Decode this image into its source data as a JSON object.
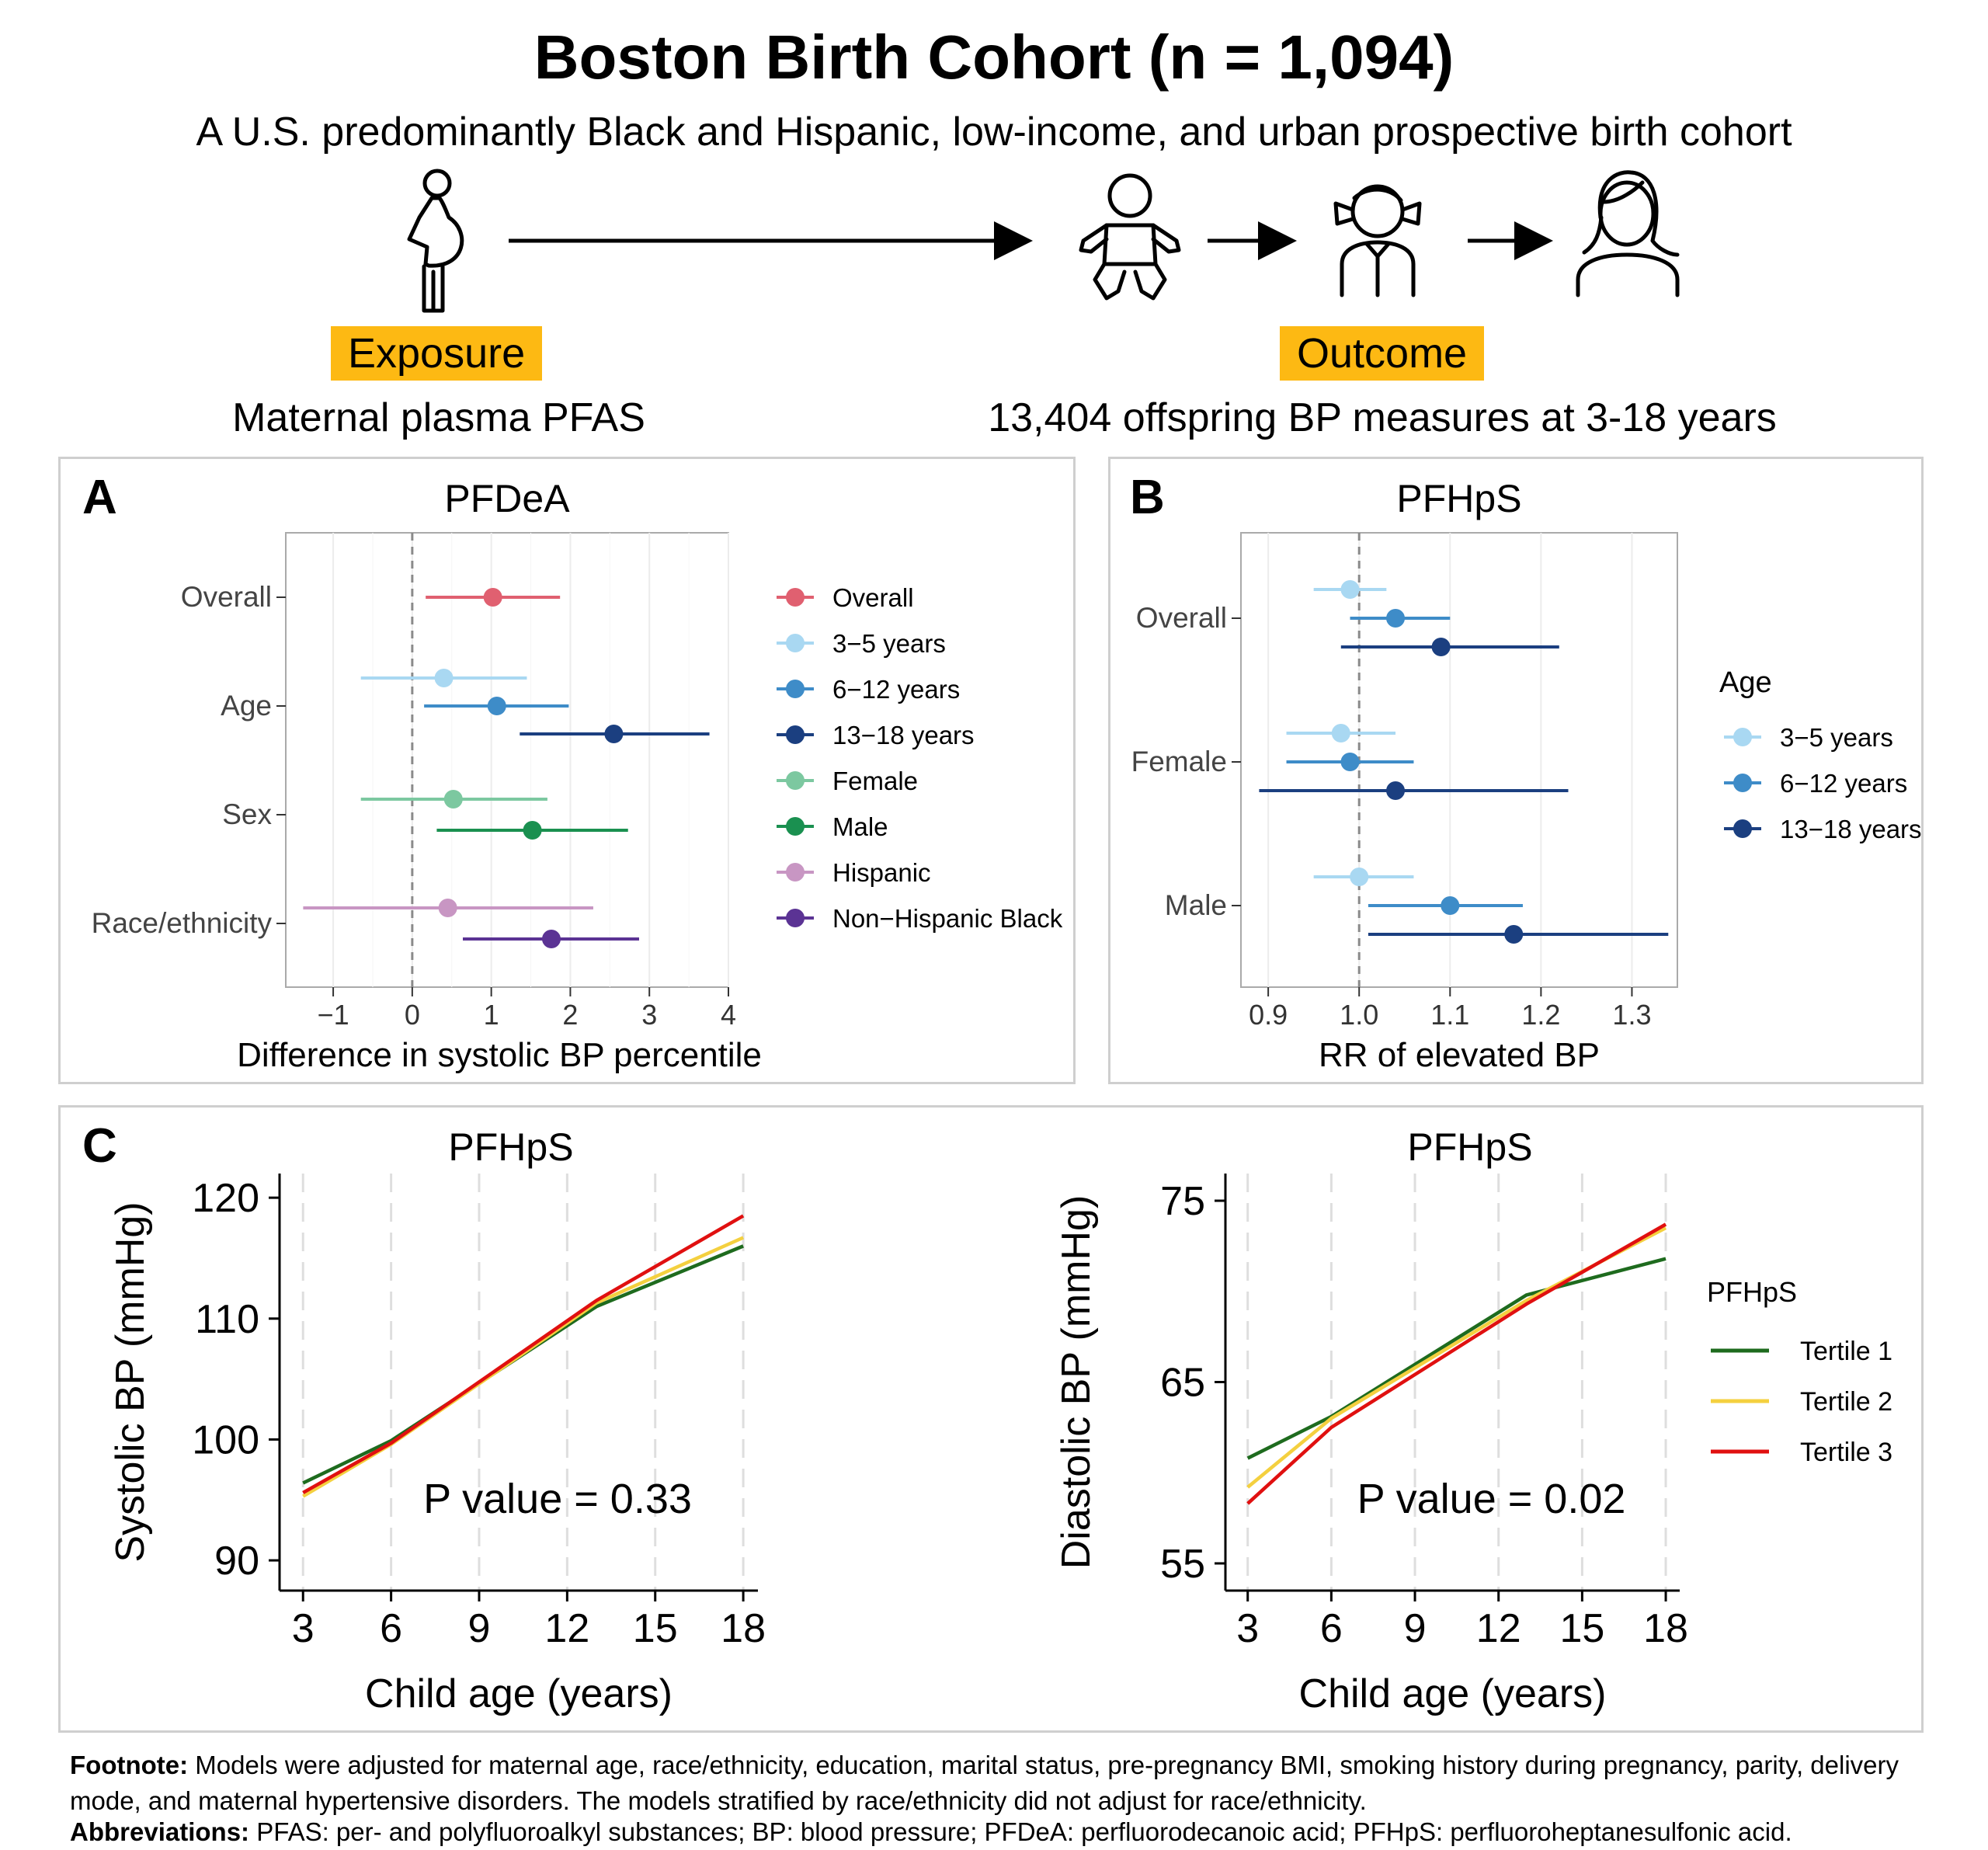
{
  "header": {
    "title": "Boston Birth Cohort (n = 1,094)",
    "subtitle": "A U.S. predominantly Black and Hispanic, low-income, and urban prospective birth cohort",
    "exposure_label": "Exposure",
    "exposure_desc": "Maternal plasma PFAS",
    "outcome_label": "Outcome",
    "outcome_desc": "13,404 offspring BP measures at 3-18 years",
    "tag_color": "#FDB913",
    "icons": [
      "pregnant-woman-icon",
      "arrow-right-icon",
      "baby-icon",
      "child-icon",
      "adolescent-icon"
    ]
  },
  "chart_data": [
    {
      "panel": "A",
      "type": "scatter",
      "title": "PFDeA",
      "xlabel": "Difference in systolic BP percentile",
      "xlim": [
        -1.6,
        4
      ],
      "xticks": [
        -1,
        0,
        1,
        2,
        3,
        4
      ],
      "xtick_labels": [
        "−1",
        "0",
        "1",
        "2",
        "3",
        "4"
      ],
      "ref_line": 0,
      "grid": true,
      "legend_position": "right",
      "groups": [
        "Overall",
        "Age",
        "Sex",
        "Race/ethnicity"
      ],
      "series": [
        {
          "name": "Overall",
          "group": "Overall",
          "estimate": 1.02,
          "lower": 0.17,
          "upper": 1.87,
          "color": "#E06070"
        },
        {
          "name": "3−5 years",
          "group": "Age",
          "estimate": 0.4,
          "lower": -0.65,
          "upper": 1.45,
          "color": "#A9D8F2"
        },
        {
          "name": "6−12 years",
          "group": "Age",
          "estimate": 1.07,
          "lower": 0.15,
          "upper": 1.98,
          "color": "#3E8CC8"
        },
        {
          "name": "13−18 years",
          "group": "Age",
          "estimate": 2.55,
          "lower": 1.36,
          "upper": 3.76,
          "color": "#1B3F80"
        },
        {
          "name": "Female",
          "group": "Sex",
          "estimate": 0.52,
          "lower": -0.65,
          "upper": 1.71,
          "color": "#7CC8A0"
        },
        {
          "name": "Male",
          "group": "Sex",
          "estimate": 1.52,
          "lower": 0.31,
          "upper": 2.73,
          "color": "#1A9050"
        },
        {
          "name": "Hispanic",
          "group": "Race/ethnicity",
          "estimate": 0.45,
          "lower": -1.38,
          "upper": 2.29,
          "color": "#C896C3"
        },
        {
          "name": "Non−Hispanic Black",
          "group": "Race/ethnicity",
          "estimate": 1.76,
          "lower": 0.64,
          "upper": 2.87,
          "color": "#5B3394"
        }
      ]
    },
    {
      "panel": "B",
      "type": "scatter",
      "title": "PFHpS",
      "xlabel": "RR of elevated BP",
      "xlim": [
        0.87,
        1.35
      ],
      "xticks": [
        0.9,
        1.0,
        1.1,
        1.2,
        1.3
      ],
      "xtick_labels": [
        "0.9",
        "1.0",
        "1.1",
        "1.2",
        "1.3"
      ],
      "ref_line": 1.0,
      "grid": true,
      "legend_title": "Age",
      "legend_position": "right",
      "groups": [
        "Overall",
        "Female",
        "Male"
      ],
      "legend": [
        {
          "name": "3−5 years",
          "color": "#A9D8F2"
        },
        {
          "name": "6−12 years",
          "color": "#3E8CC8"
        },
        {
          "name": "13−18 years",
          "color": "#1B3F80"
        }
      ],
      "series": [
        {
          "group": "Overall",
          "age": "3−5 years",
          "estimate": 0.99,
          "lower": 0.95,
          "upper": 1.03
        },
        {
          "group": "Overall",
          "age": "6−12 years",
          "estimate": 1.04,
          "lower": 0.99,
          "upper": 1.1
        },
        {
          "group": "Overall",
          "age": "13−18 years",
          "estimate": 1.09,
          "lower": 0.98,
          "upper": 1.22
        },
        {
          "group": "Female",
          "age": "3−5 years",
          "estimate": 0.98,
          "lower": 0.92,
          "upper": 1.04
        },
        {
          "group": "Female",
          "age": "6−12 years",
          "estimate": 0.99,
          "lower": 0.92,
          "upper": 1.06
        },
        {
          "group": "Female",
          "age": "13−18 years",
          "estimate": 1.04,
          "lower": 0.89,
          "upper": 1.23
        },
        {
          "group": "Male",
          "age": "3−5 years",
          "estimate": 1.0,
          "lower": 0.95,
          "upper": 1.06
        },
        {
          "group": "Male",
          "age": "6−12 years",
          "estimate": 1.1,
          "lower": 1.01,
          "upper": 1.18
        },
        {
          "group": "Male",
          "age": "13−18 years",
          "estimate": 1.17,
          "lower": 1.01,
          "upper": 1.34
        }
      ]
    },
    {
      "panel": "C",
      "type": "line",
      "title": "PFHpS",
      "xlabel": "Child age (years)",
      "ylabel": "Systolic BP (mmHg)",
      "xlim": [
        2.2,
        18.5
      ],
      "ylim": [
        87.5,
        122
      ],
      "xticks": [
        3,
        6,
        9,
        12,
        15,
        18
      ],
      "yticks": [
        90,
        100,
        110,
        120
      ],
      "annotation": "P value = 0.33",
      "series": [
        {
          "name": "Tertile 1",
          "color": "#1E6B1E",
          "x": [
            3,
            6,
            13,
            18
          ],
          "y": [
            96.4,
            99.9,
            111,
            116
          ]
        },
        {
          "name": "Tertile 2",
          "color": "#F4D03F",
          "x": [
            3,
            6,
            13,
            18
          ],
          "y": [
            95.3,
            99.6,
            111.3,
            116.7
          ]
        },
        {
          "name": "Tertile 3",
          "color": "#E01010",
          "x": [
            3,
            6,
            13,
            18
          ],
          "y": [
            95.6,
            99.7,
            111.5,
            118.5
          ]
        }
      ]
    },
    {
      "panel": "C",
      "type": "line",
      "title": "PFHpS",
      "xlabel": "Child age (years)",
      "ylabel": "Diastolic BP (mmHg)",
      "xlim": [
        2.2,
        18.5
      ],
      "ylim": [
        53.5,
        76.5
      ],
      "xticks": [
        3,
        6,
        9,
        12,
        15,
        18
      ],
      "yticks": [
        55,
        65,
        75
      ],
      "annotation": "P value = 0.02",
      "legend_title": "PFHpS",
      "legend_position": "right",
      "series": [
        {
          "name": "Tertile 1",
          "color": "#1E6B1E",
          "x": [
            3,
            6,
            13,
            18
          ],
          "y": [
            60.8,
            63.1,
            69.8,
            71.8
          ]
        },
        {
          "name": "Tertile 2",
          "color": "#F4D03F",
          "x": [
            3,
            6,
            13,
            18
          ],
          "y": [
            59.2,
            63.0,
            69.5,
            73.5
          ]
        },
        {
          "name": "Tertile 3",
          "color": "#E01010",
          "x": [
            3,
            6,
            13,
            18
          ],
          "y": [
            58.3,
            62.5,
            69.3,
            73.7
          ]
        }
      ]
    }
  ],
  "panel_labels": {
    "a": "A",
    "b": "B",
    "c": "C"
  },
  "footnote": {
    "footnote_label": "Footnote:",
    "footnote_text": " Models were adjusted for maternal age, race/ethnicity, education, marital status, pre-pregnancy BMI, smoking history during pregnancy, parity, delivery mode, and maternal hypertensive disorders. The models stratified by race/ethnicity did not adjust for race/ethnicity.",
    "abbr_label": "Abbreviations:",
    "abbr_text": " PFAS: per- and polyfluoroalkyl substances; BP: blood pressure; PFDeA: perfluorodecanoic acid; PFHpS: perfluoroheptanesulfonic acid."
  }
}
